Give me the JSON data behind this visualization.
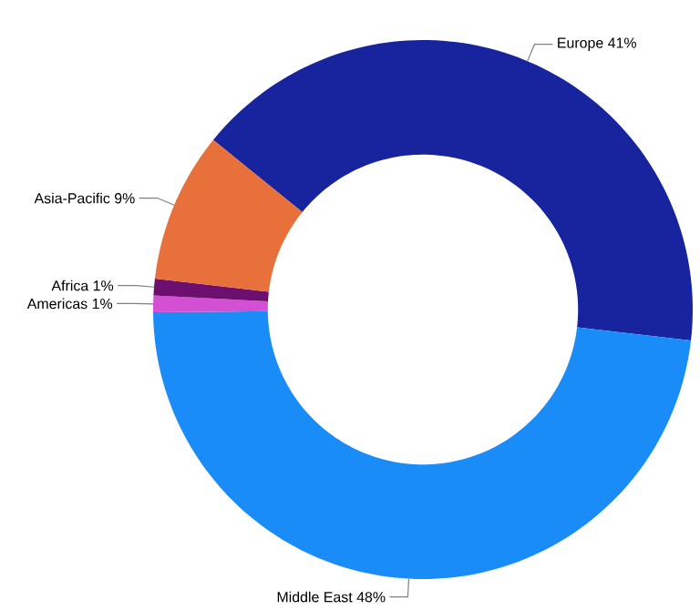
{
  "chart_data": {
    "type": "donut",
    "categories": [
      "Europe",
      "Middle East",
      "Americas",
      "Africa",
      "Asia-Pacific"
    ],
    "values": [
      41,
      48,
      1,
      1,
      9
    ],
    "value_labels": [
      "41%",
      "48%",
      "1%",
      "1%",
      "9%"
    ],
    "colors": [
      "#18249e",
      "#1a8cf7",
      "#d34fd3",
      "#6c0f6f",
      "#e8703a"
    ]
  }
}
